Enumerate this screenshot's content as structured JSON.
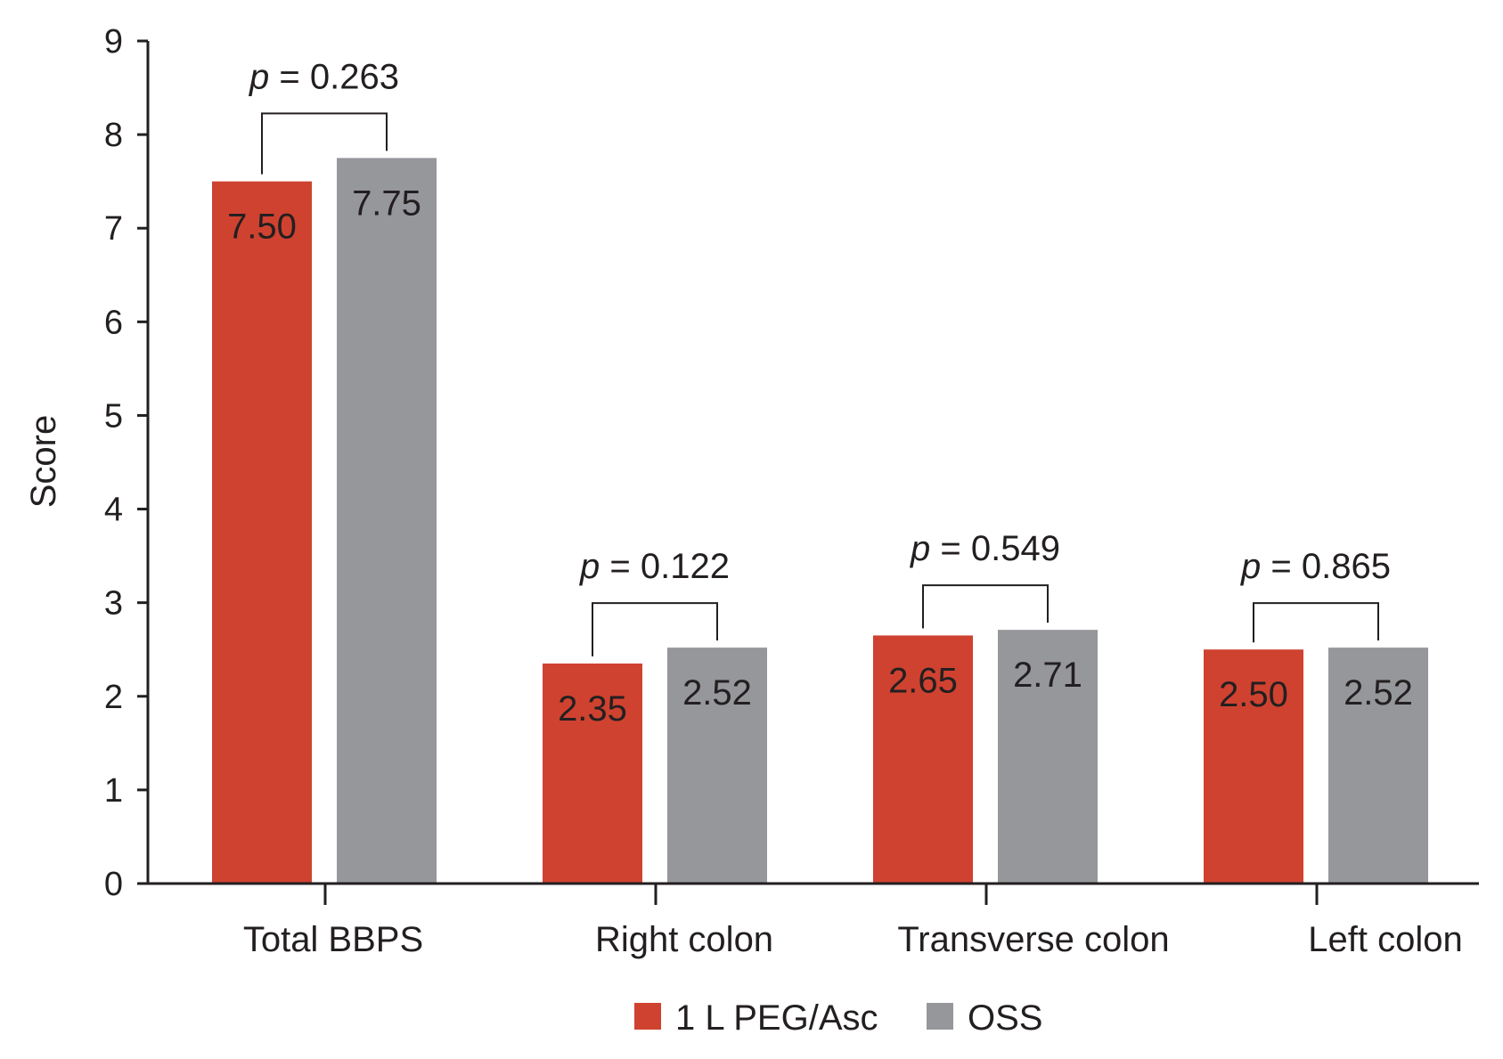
{
  "chart_data": {
    "type": "bar",
    "categories": [
      "Total BBPS",
      "Right colon",
      "Transverse colon",
      "Left colon"
    ],
    "series": [
      {
        "name": "1 L PEG/Asc",
        "values": [
          7.5,
          2.35,
          2.65,
          2.5
        ],
        "labels": [
          "7.50",
          "2.35",
          "2.65",
          "2.50"
        ],
        "color": "#cf4230"
      },
      {
        "name": "OSS",
        "values": [
          7.75,
          2.52,
          2.71,
          2.52
        ],
        "labels": [
          "7.75",
          "2.52",
          "2.71",
          "2.52"
        ],
        "color": "#96979b"
      }
    ],
    "p_values": [
      {
        "p": "p",
        "text": " = 0.263"
      },
      {
        "p": "p",
        "text": " = 0.122"
      },
      {
        "p": "p",
        "text": " = 0.549"
      },
      {
        "p": "p",
        "text": " = 0.865"
      }
    ],
    "title": "",
    "xlabel": "",
    "ylabel": "Score",
    "ylim": [
      0,
      9
    ],
    "yticks": [
      0,
      1,
      2,
      3,
      4,
      5,
      6,
      7,
      8,
      9
    ],
    "grid": false,
    "legend_position": "bottom-center"
  }
}
